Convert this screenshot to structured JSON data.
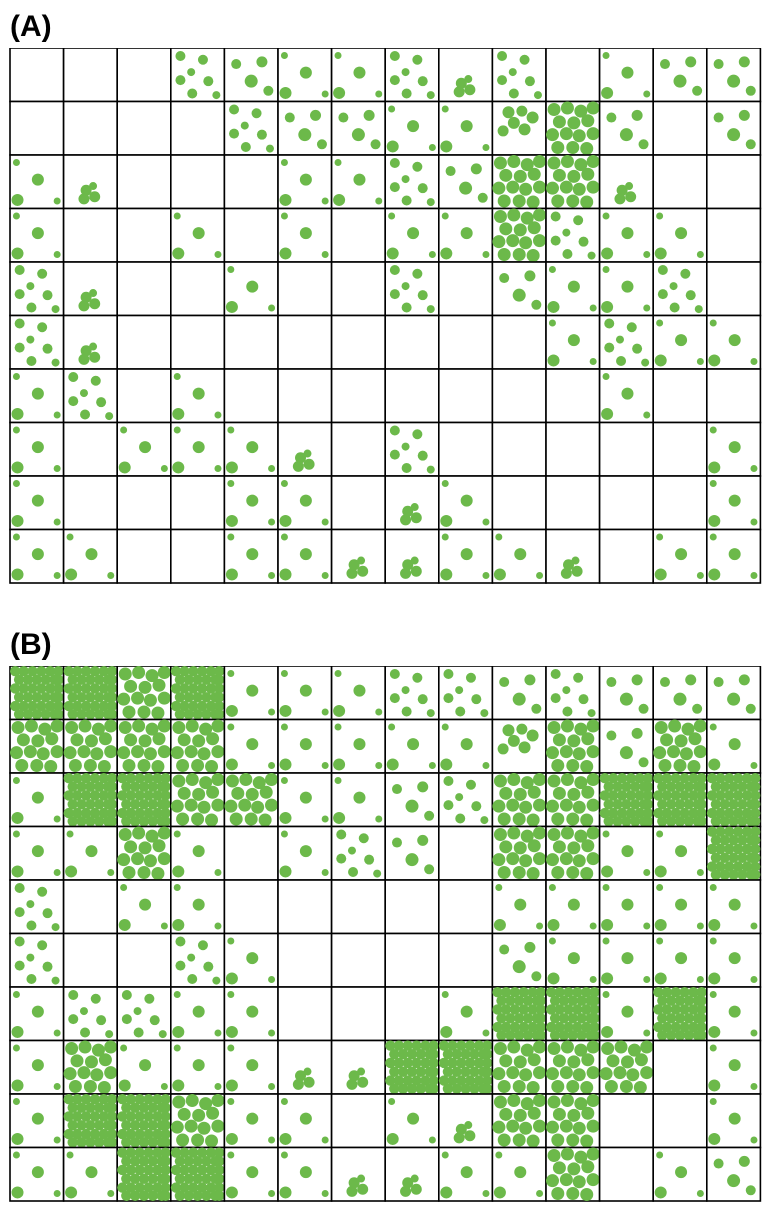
{
  "panels": [
    {
      "label": "(A)",
      "rows": [
        [
          0,
          0,
          0,
          5,
          3,
          2,
          2,
          5,
          4,
          5,
          0,
          2,
          3,
          3
        ],
        [
          0,
          0,
          0,
          0,
          5,
          3,
          3,
          2,
          2,
          6,
          7,
          3,
          0,
          3
        ],
        [
          2,
          4,
          0,
          0,
          0,
          2,
          2,
          5,
          3,
          7,
          7,
          4,
          0,
          0
        ],
        [
          2,
          0,
          0,
          2,
          0,
          2,
          0,
          2,
          2,
          7,
          5,
          2,
          2,
          0
        ],
        [
          5,
          4,
          0,
          0,
          2,
          0,
          0,
          5,
          0,
          3,
          2,
          2,
          5,
          0
        ],
        [
          5,
          4,
          0,
          0,
          0,
          0,
          0,
          0,
          0,
          0,
          2,
          5,
          2,
          2
        ],
        [
          2,
          5,
          0,
          2,
          0,
          0,
          0,
          0,
          0,
          0,
          0,
          2,
          0,
          0
        ],
        [
          2,
          0,
          2,
          2,
          2,
          4,
          0,
          5,
          0,
          0,
          0,
          0,
          0,
          2
        ],
        [
          2,
          0,
          0,
          0,
          2,
          2,
          0,
          4,
          2,
          0,
          0,
          0,
          0,
          2
        ],
        [
          2,
          2,
          0,
          0,
          2,
          2,
          4,
          4,
          2,
          2,
          4,
          0,
          2,
          2
        ]
      ]
    },
    {
      "label": "(B)",
      "rows": [
        [
          8,
          8,
          7,
          8,
          2,
          2,
          2,
          5,
          5,
          3,
          5,
          3,
          3,
          3
        ],
        [
          7,
          7,
          7,
          7,
          2,
          2,
          2,
          2,
          2,
          6,
          7,
          3,
          7,
          2
        ],
        [
          2,
          8,
          8,
          7,
          7,
          2,
          2,
          3,
          5,
          7,
          7,
          8,
          8,
          8
        ],
        [
          2,
          2,
          7,
          2,
          0,
          2,
          5,
          3,
          0,
          7,
          7,
          2,
          2,
          8
        ],
        [
          5,
          0,
          2,
          2,
          0,
          0,
          0,
          0,
          0,
          2,
          2,
          2,
          2,
          2
        ],
        [
          5,
          0,
          0,
          5,
          2,
          0,
          0,
          0,
          0,
          3,
          2,
          2,
          2,
          2
        ],
        [
          2,
          5,
          5,
          2,
          2,
          0,
          0,
          0,
          2,
          8,
          8,
          2,
          8,
          2
        ],
        [
          2,
          7,
          2,
          2,
          2,
          4,
          4,
          8,
          8,
          7,
          7,
          7,
          0,
          2
        ],
        [
          2,
          8,
          8,
          7,
          2,
          2,
          0,
          2,
          4,
          7,
          7,
          0,
          0,
          2
        ],
        [
          2,
          2,
          8,
          8,
          2,
          2,
          4,
          4,
          2,
          2,
          7,
          0,
          2,
          3
        ]
      ]
    }
  ],
  "colors": {
    "dot": "#6cb94a",
    "grid_line": "#000000",
    "background": "#ffffff"
  }
}
